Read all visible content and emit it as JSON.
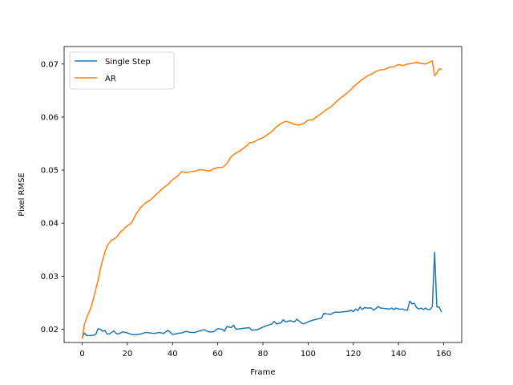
{
  "chart_data": {
    "type": "line",
    "title": "",
    "xlabel": "Frame",
    "ylabel": "Pixel RMSE",
    "xlim": [
      -8,
      168
    ],
    "ylim": [
      0.0175,
      0.0733
    ],
    "xticks": [
      0,
      20,
      40,
      60,
      80,
      100,
      120,
      140,
      160
    ],
    "xtick_labels": [
      "0",
      "20",
      "40",
      "60",
      "80",
      "100",
      "120",
      "140",
      "160"
    ],
    "yticks": [
      0.02,
      0.03,
      0.04,
      0.05,
      0.06,
      0.07
    ],
    "ytick_labels": [
      "0.02",
      "0.03",
      "0.04",
      "0.05",
      "0.06",
      "0.07"
    ],
    "grid": false,
    "legend_position": "upper-left",
    "series": [
      {
        "name": "Single Step",
        "color": "#1f77b4",
        "points": [
          [
            0,
            0.0185
          ],
          [
            1,
            0.0193
          ],
          [
            2,
            0.0188
          ],
          [
            3,
            0.0188
          ],
          [
            4,
            0.0188
          ],
          [
            5,
            0.0189
          ],
          [
            6,
            0.019
          ],
          [
            7,
            0.0201
          ],
          [
            8,
            0.02
          ],
          [
            9,
            0.0196
          ],
          [
            10,
            0.0198
          ],
          [
            11,
            0.0191
          ],
          [
            12,
            0.0191
          ],
          [
            13,
            0.0194
          ],
          [
            14,
            0.0197
          ],
          [
            15,
            0.0192
          ],
          [
            16,
            0.0191
          ],
          [
            17,
            0.0193
          ],
          [
            18,
            0.0195
          ],
          [
            19,
            0.0194
          ],
          [
            20,
            0.0193
          ],
          [
            22,
            0.019
          ],
          [
            24,
            0.019
          ],
          [
            26,
            0.0191
          ],
          [
            28,
            0.0194
          ],
          [
            30,
            0.0193
          ],
          [
            32,
            0.0192
          ],
          [
            34,
            0.0194
          ],
          [
            36,
            0.0192
          ],
          [
            38,
            0.0198
          ],
          [
            40,
            0.019
          ],
          [
            42,
            0.0192
          ],
          [
            44,
            0.0193
          ],
          [
            46,
            0.0196
          ],
          [
            48,
            0.0194
          ],
          [
            50,
            0.0194
          ],
          [
            52,
            0.0197
          ],
          [
            54,
            0.0199
          ],
          [
            56,
            0.0195
          ],
          [
            58,
            0.0195
          ],
          [
            60,
            0.0201
          ],
          [
            62,
            0.02
          ],
          [
            63,
            0.0196
          ],
          [
            64,
            0.0205
          ],
          [
            66,
            0.0203
          ],
          [
            67,
            0.0208
          ],
          [
            68,
            0.02
          ],
          [
            70,
            0.0201
          ],
          [
            72,
            0.0202
          ],
          [
            74,
            0.0203
          ],
          [
            75,
            0.0198
          ],
          [
            77,
            0.0199
          ],
          [
            78,
            0.02
          ],
          [
            80,
            0.0204
          ],
          [
            82,
            0.0207
          ],
          [
            84,
            0.021
          ],
          [
            85,
            0.0215
          ],
          [
            86,
            0.021
          ],
          [
            88,
            0.0212
          ],
          [
            89,
            0.0218
          ],
          [
            90,
            0.0214
          ],
          [
            92,
            0.0216
          ],
          [
            94,
            0.0214
          ],
          [
            95,
            0.0219
          ],
          [
            97,
            0.0212
          ],
          [
            98,
            0.021
          ],
          [
            100,
            0.0214
          ],
          [
            102,
            0.0217
          ],
          [
            104,
            0.0219
          ],
          [
            106,
            0.0221
          ],
          [
            107,
            0.023
          ],
          [
            108,
            0.0229
          ],
          [
            110,
            0.0228
          ],
          [
            111,
            0.0231
          ],
          [
            112,
            0.0232
          ],
          [
            114,
            0.0232
          ],
          [
            116,
            0.0233
          ],
          [
            118,
            0.0234
          ],
          [
            119,
            0.0236
          ],
          [
            120,
            0.0233
          ],
          [
            121,
            0.0238
          ],
          [
            122,
            0.0235
          ],
          [
            123,
            0.0242
          ],
          [
            124,
            0.0237
          ],
          [
            125,
            0.0241
          ],
          [
            126,
            0.024
          ],
          [
            128,
            0.024
          ],
          [
            129,
            0.0236
          ],
          [
            130,
            0.0239
          ],
          [
            131,
            0.0243
          ],
          [
            132,
            0.024
          ],
          [
            134,
            0.0239
          ],
          [
            136,
            0.0238
          ],
          [
            137,
            0.024
          ],
          [
            138,
            0.0237
          ],
          [
            139,
            0.024
          ],
          [
            140,
            0.0238
          ],
          [
            142,
            0.0238
          ],
          [
            143,
            0.0236
          ],
          [
            144,
            0.0236
          ],
          [
            145,
            0.0253
          ],
          [
            146,
            0.0248
          ],
          [
            147,
            0.0249
          ],
          [
            148,
            0.0241
          ],
          [
            149,
            0.0238
          ],
          [
            150,
            0.024
          ],
          [
            151,
            0.0237
          ],
          [
            152,
            0.024
          ],
          [
            153,
            0.0237
          ],
          [
            154,
            0.0237
          ],
          [
            155,
            0.0243
          ],
          [
            156,
            0.0345
          ],
          [
            157,
            0.0242
          ],
          [
            158,
            0.0242
          ],
          [
            159,
            0.0233
          ]
        ]
      },
      {
        "name": "AR",
        "color": "#ff7f0e",
        "points": [
          [
            0,
            0.0183
          ],
          [
            1,
            0.021
          ],
          [
            2,
            0.0222
          ],
          [
            3,
            0.0232
          ],
          [
            4,
            0.0243
          ],
          [
            5,
            0.0258
          ],
          [
            6,
            0.0275
          ],
          [
            7,
            0.0292
          ],
          [
            8,
            0.0313
          ],
          [
            9,
            0.033
          ],
          [
            10,
            0.0345
          ],
          [
            11,
            0.0357
          ],
          [
            12,
            0.0363
          ],
          [
            13,
            0.0368
          ],
          [
            14,
            0.037
          ],
          [
            15,
            0.0373
          ],
          [
            16,
            0.0378
          ],
          [
            17,
            0.0384
          ],
          [
            18,
            0.0387
          ],
          [
            19,
            0.0392
          ],
          [
            20,
            0.0395
          ],
          [
            21,
            0.0398
          ],
          [
            22,
            0.0402
          ],
          [
            23,
            0.041
          ],
          [
            24,
            0.0418
          ],
          [
            25,
            0.0424
          ],
          [
            26,
            0.043
          ],
          [
            28,
            0.0438
          ],
          [
            30,
            0.0443
          ],
          [
            32,
            0.0451
          ],
          [
            34,
            0.0459
          ],
          [
            36,
            0.0467
          ],
          [
            38,
            0.0473
          ],
          [
            40,
            0.0482
          ],
          [
            42,
            0.0488
          ],
          [
            44,
            0.0497
          ],
          [
            46,
            0.0495
          ],
          [
            48,
            0.0497
          ],
          [
            50,
            0.0498
          ],
          [
            52,
            0.0501
          ],
          [
            54,
            0.05
          ],
          [
            56,
            0.0498
          ],
          [
            58,
            0.0502
          ],
          [
            60,
            0.0505
          ],
          [
            62,
            0.0505
          ],
          [
            64,
            0.0512
          ],
          [
            66,
            0.0526
          ],
          [
            68,
            0.0532
          ],
          [
            70,
            0.0537
          ],
          [
            72,
            0.0543
          ],
          [
            74,
            0.0551
          ],
          [
            76,
            0.0553
          ],
          [
            78,
            0.0558
          ],
          [
            80,
            0.0561
          ],
          [
            82,
            0.0567
          ],
          [
            84,
            0.0573
          ],
          [
            86,
            0.0582
          ],
          [
            88,
            0.0588
          ],
          [
            90,
            0.0592
          ],
          [
            92,
            0.059
          ],
          [
            94,
            0.0586
          ],
          [
            96,
            0.0585
          ],
          [
            98,
            0.0588
          ],
          [
            100,
            0.0594
          ],
          [
            102,
            0.0595
          ],
          [
            104,
            0.0601
          ],
          [
            106,
            0.0607
          ],
          [
            108,
            0.0614
          ],
          [
            110,
            0.0619
          ],
          [
            112,
            0.0627
          ],
          [
            114,
            0.0635
          ],
          [
            116,
            0.0641
          ],
          [
            118,
            0.0648
          ],
          [
            120,
            0.0657
          ],
          [
            122,
            0.0664
          ],
          [
            124,
            0.0671
          ],
          [
            126,
            0.0677
          ],
          [
            128,
            0.0681
          ],
          [
            130,
            0.0686
          ],
          [
            132,
            0.0689
          ],
          [
            134,
            0.069
          ],
          [
            136,
            0.0694
          ],
          [
            138,
            0.0695
          ],
          [
            140,
            0.0699
          ],
          [
            142,
            0.0697
          ],
          [
            144,
            0.07
          ],
          [
            146,
            0.0701
          ],
          [
            148,
            0.0703
          ],
          [
            150,
            0.0701
          ],
          [
            152,
            0.07
          ],
          [
            154,
            0.0704
          ],
          [
            155,
            0.0706
          ],
          [
            156,
            0.0678
          ],
          [
            157,
            0.0683
          ],
          [
            158,
            0.0691
          ],
          [
            159,
            0.069
          ]
        ]
      }
    ]
  }
}
